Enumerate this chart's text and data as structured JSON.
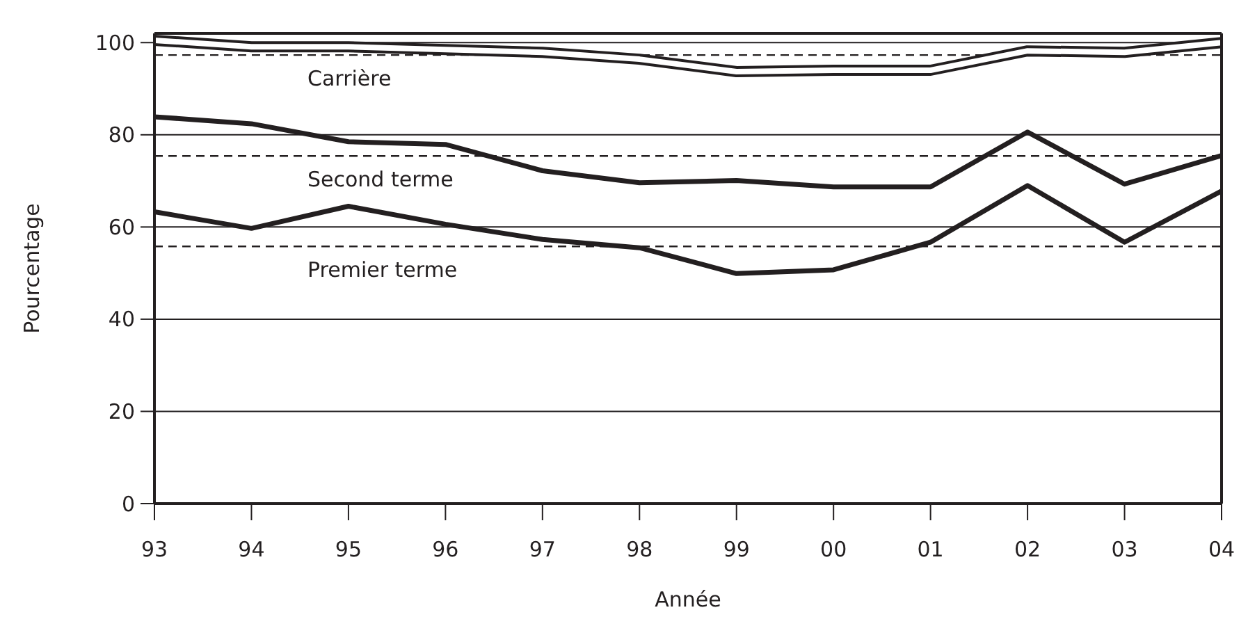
{
  "chart_data": {
    "type": "line",
    "xlabel": "Année",
    "ylabel": "Pourcentage",
    "categories": [
      "93",
      "94",
      "95",
      "96",
      "97",
      "98",
      "99",
      "00",
      "01",
      "02",
      "03",
      "04"
    ],
    "ylim": [
      0,
      102
    ],
    "yticks": [
      0,
      20,
      40,
      60,
      80,
      100
    ],
    "grid": "y",
    "marker": "none",
    "line_style": "solid",
    "series": [
      {
        "name": "Carrière",
        "color": "#231f20",
        "values": [
          100.5,
          99.1,
          99.1,
          98.5,
          97.9,
          96.4,
          93.7,
          94.0,
          94.0,
          98.2,
          97.9,
          100
        ]
      },
      {
        "name": "Second terme",
        "color": "#231f20",
        "values": [
          83.9,
          82.4,
          78.5,
          77.9,
          72.2,
          69.6,
          70.1,
          68.7,
          68.7,
          80.6,
          69.3,
          75.5
        ]
      },
      {
        "name": "Premier terme",
        "color": "#231f20",
        "values": [
          63.3,
          59.7,
          64.5,
          60.6,
          57.3,
          55.5,
          49.9,
          50.7,
          56.7,
          69.0,
          56.7,
          67.8
        ]
      }
    ],
    "ref_lines": [
      {
        "axis": "y",
        "value": 97.3,
        "line_style": "dashed",
        "color": "#231f20"
      },
      {
        "axis": "y",
        "value": 75.4,
        "line_style": "dashed",
        "color": "#231f20"
      },
      {
        "axis": "y",
        "value": 55.8,
        "line_style": "dashed",
        "color": "#231f20"
      }
    ]
  }
}
